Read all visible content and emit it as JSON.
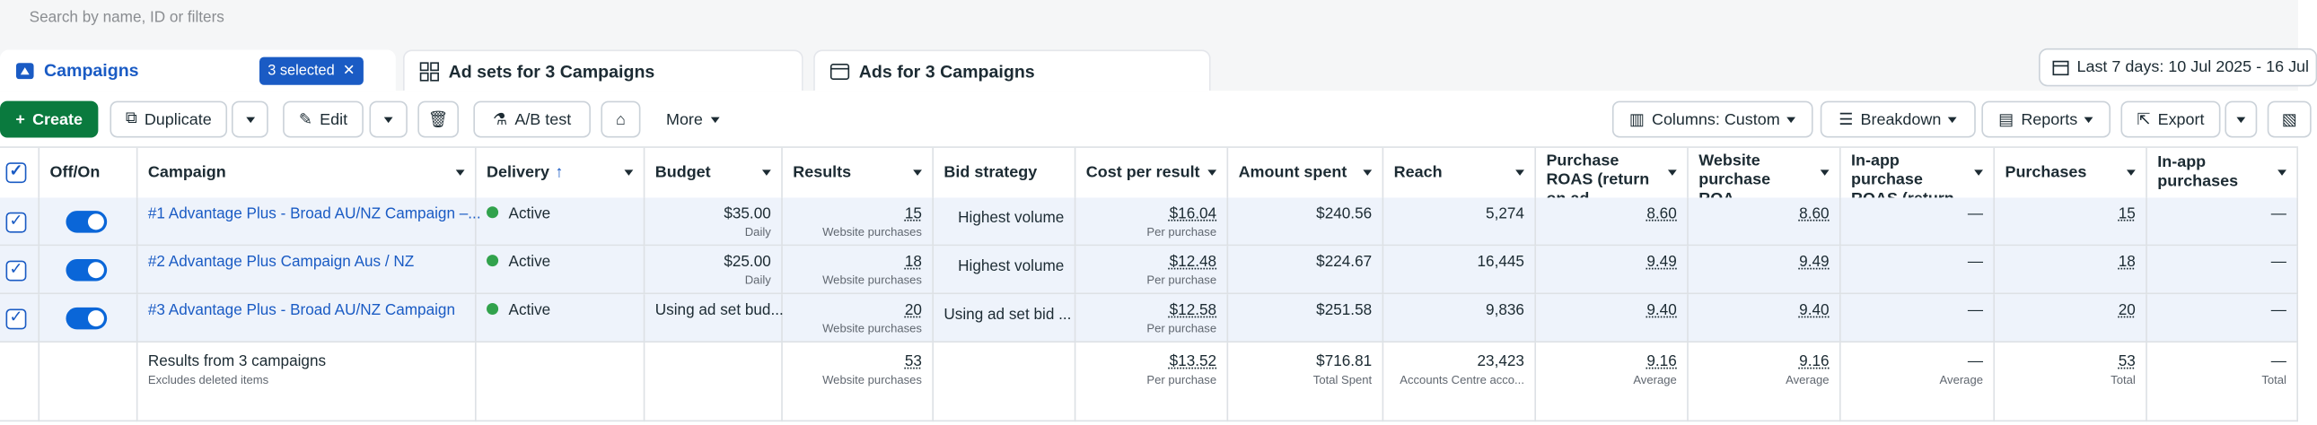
{
  "search": {
    "placeholder": "Search by name, ID or filters"
  },
  "tabs": [
    {
      "label": "Campaigns",
      "badge": "3 selected"
    },
    {
      "label": "Ad sets for 3 Campaigns"
    },
    {
      "label": "Ads for 3 Campaigns"
    }
  ],
  "date_range": "Last 7 days: 10 Jul 2025 - 16 Jul",
  "toolbar": {
    "left": [
      "Create",
      "Duplicate",
      "Edit",
      "A/B test",
      "More"
    ],
    "right": [
      "Columns: Custom",
      "Breakdown",
      "Reports",
      "Export"
    ]
  },
  "table": {
    "columns": [
      "Off/On",
      "Campaign",
      "Delivery",
      "Budget",
      "Results",
      "Bid strategy",
      "Cost per result",
      "Amount spent",
      "Reach",
      "Purchase ROAS (return on ad...",
      "Website purchase ROA...",
      "In-app purchase ROAS (return ...",
      "Purchases",
      "In-app purchases"
    ],
    "rows": [
      {
        "campaign": "#1 Advantage Plus - Broad AU/NZ Campaign –...",
        "delivery": "Active",
        "budget": "$35.00",
        "budget_note": "Daily",
        "results": "15",
        "results_note": "Website purchases",
        "bid_strategy": "Highest volume",
        "cost_per_result": "$16.04",
        "cost_note": "Per purchase",
        "amount_spent": "$240.56",
        "reach": "5,274",
        "purchase_roas": "8.60",
        "website_purchase_roas": "8.60",
        "inapp_purchase_roas": "—",
        "purchases": "15",
        "inapp_purchases": "—"
      },
      {
        "campaign": "#2 Advantage Plus Campaign Aus / NZ",
        "delivery": "Active",
        "budget": "$25.00",
        "budget_note": "Daily",
        "results": "18",
        "results_note": "Website purchases",
        "bid_strategy": "Highest volume",
        "cost_per_result": "$12.48",
        "cost_note": "Per purchase",
        "amount_spent": "$224.67",
        "reach": "16,445",
        "purchase_roas": "9.49",
        "website_purchase_roas": "9.49",
        "inapp_purchase_roas": "—",
        "purchases": "18",
        "inapp_purchases": "—"
      },
      {
        "campaign": "#3 Advantage Plus - Broad AU/NZ Campaign",
        "delivery": "Active",
        "budget": "Using ad set bud...",
        "results": "20",
        "results_note": "Website purchases",
        "bid_strategy": "Using ad set bid ...",
        "cost_per_result": "$12.58",
        "cost_note": "Per purchase",
        "amount_spent": "$251.58",
        "reach": "9,836",
        "purchase_roas": "9.40",
        "website_purchase_roas": "9.40",
        "inapp_purchase_roas": "—",
        "purchases": "20",
        "inapp_purchases": "—"
      }
    ],
    "summary": {
      "campaign": "Results from 3 campaigns",
      "campaign_note": "Excludes deleted items",
      "results": "53",
      "results_note": "Website purchases",
      "cost_per_result": "$13.52",
      "cost_note": "Per purchase",
      "amount_spent": "$716.81",
      "amount_note": "Total Spent",
      "reach": "23,423",
      "reach_note": "Accounts Centre acco...",
      "purchase_roas": "9.16",
      "purchase_roas_note": "Average",
      "website_purchase_roas": "9.16",
      "website_purchase_roas_note": "Average",
      "inapp_purchase_roas": "—",
      "inapp_purchase_roas_note": "Average",
      "purchases": "53",
      "purchases_note": "Total",
      "inapp_purchases": "—",
      "inapp_purchases_note": "Total"
    }
  }
}
